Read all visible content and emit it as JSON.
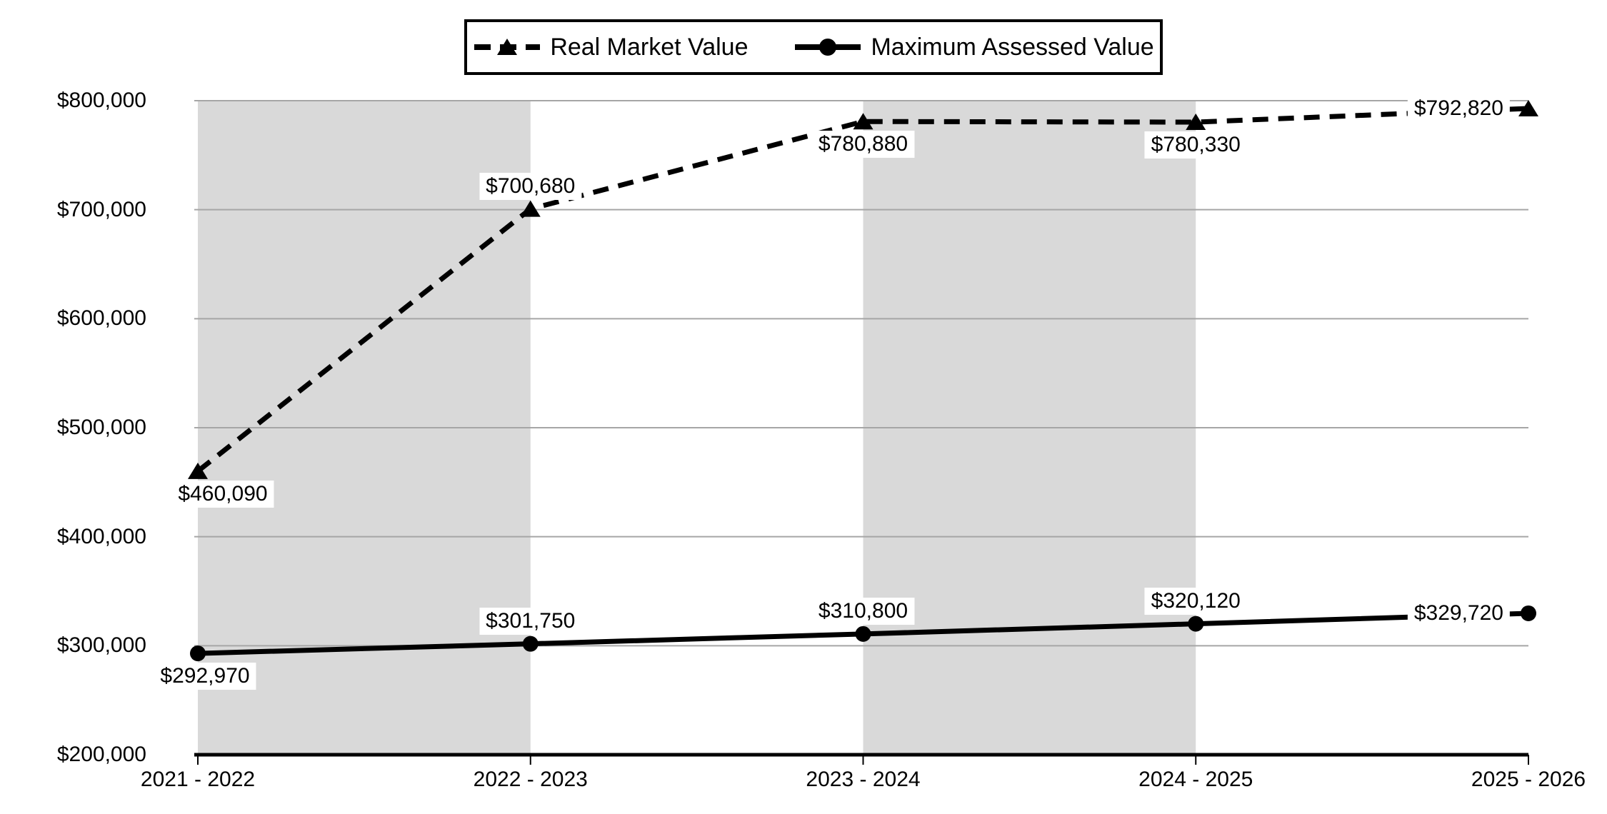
{
  "legend": {
    "items": [
      {
        "label": "Real Market Value",
        "marker": "triangle-dashed-line"
      },
      {
        "label": "Maximum Assessed Value",
        "marker": "circle-solid-line"
      }
    ]
  },
  "chart_data": {
    "type": "line",
    "categories": [
      "2021 - 2022",
      "2022 - 2023",
      "2023 - 2024",
      "2024 - 2025",
      "2025 - 2026"
    ],
    "series": [
      {
        "name": "Real Market Value",
        "values": [
          460090,
          700680,
          780880,
          780330,
          792820
        ],
        "data_labels": [
          "$460,090",
          "$700,680",
          "$780,880",
          "$780,330",
          "$792,820"
        ],
        "label_placements": [
          "below",
          "above",
          "below",
          "below",
          "left"
        ],
        "label_dx": [
          35,
          0,
          0,
          0,
          0
        ],
        "line_style": "dashed",
        "marker": "triangle",
        "color": "#000000"
      },
      {
        "name": "Maximum Assessed Value",
        "values": [
          292970,
          301750,
          310800,
          320120,
          329720
        ],
        "data_labels": [
          "$292,970",
          "$301,750",
          "$310,800",
          "$320,120",
          "$329,720"
        ],
        "label_placements": [
          "below",
          "above",
          "above",
          "above",
          "left"
        ],
        "label_dx": [
          10,
          0,
          0,
          0,
          0
        ],
        "line_style": "solid",
        "marker": "circle",
        "color": "#000000"
      }
    ],
    "y_axis": {
      "min": 200000,
      "max": 800000,
      "step": 100000,
      "tick_labels": [
        "$200,000",
        "$300,000",
        "$400,000",
        "$500,000",
        "$600,000",
        "$700,000",
        "$800,000"
      ]
    },
    "x_axis": {
      "tick_labels": [
        "2021 - 2022",
        "2022 - 2023",
        "2023 - 2024",
        "2024 - 2025",
        "2025 - 2026"
      ]
    },
    "grid": "horizontal",
    "legend_position": "top-center",
    "plot_bands_between_categories": [
      [
        0,
        1
      ],
      [
        2,
        3
      ]
    ],
    "colors": {
      "band": "#d9d9d9",
      "gridline": "#a6a6a6",
      "axis": "#000000",
      "series": "#000000",
      "background": "#ffffff",
      "label_background": "#ffffff"
    }
  }
}
